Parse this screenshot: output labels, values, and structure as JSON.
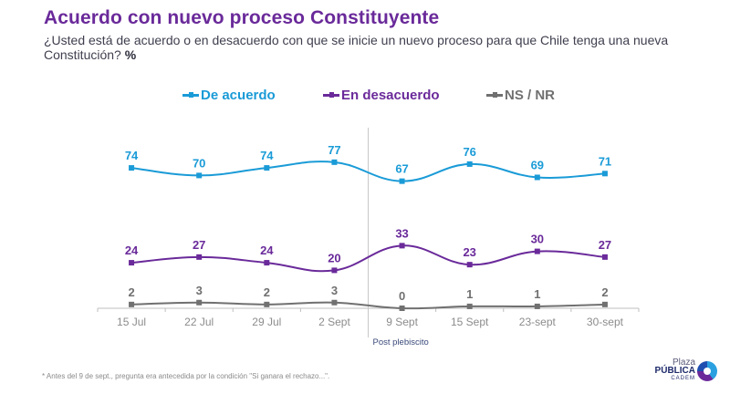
{
  "header": {
    "title": "Acuerdo con nuevo proceso Constituyente",
    "subtitle": "¿Usted está de acuerdo o en desacuerdo con que se inicie un nuevo proceso para que Chile tenga una nueva Constitución?",
    "subtitle_unit": "%"
  },
  "colors": {
    "acuerdo": "#1a9bd7",
    "desacuerdo": "#6a2a9a",
    "nsnr": "#707070",
    "axis": "#bfbfbf",
    "title": "#6a2a9a"
  },
  "chart_data": {
    "type": "line",
    "title": "Acuerdo con nuevo proceso Constituyente",
    "xlabel": "",
    "ylabel": "%",
    "categories": [
      "15 Jul",
      "22 Jul",
      "29 Jul",
      "2 Sept",
      "9 Sept",
      "15 Sept",
      "23-sept",
      "30-sept"
    ],
    "series": [
      {
        "name": "De acuerdo",
        "color": "#1a9bd7",
        "values": [
          74,
          70,
          74,
          77,
          67,
          76,
          69,
          71
        ]
      },
      {
        "name": "En desacuerdo",
        "color": "#6a2a9a",
        "values": [
          24,
          27,
          24,
          20,
          33,
          23,
          30,
          27
        ]
      },
      {
        "name": "NS / NR",
        "color": "#707070",
        "values": [
          2,
          3,
          2,
          3,
          0,
          1,
          1,
          2
        ]
      }
    ],
    "ylim": [
      0,
      80
    ],
    "grid": false,
    "legend_position": "top",
    "annotations": [
      {
        "text": "Post plebiscito",
        "between": [
          "2 Sept",
          "9 Sept"
        ]
      }
    ]
  },
  "footnote": "Antes del 9 de sept., pregunta era antecedida por la condición \"Si ganara el rechazo...\".",
  "footnote_marker": "*",
  "logo": {
    "line1": "Plaza",
    "line2": "PÚBLICA",
    "line3": "CADEM"
  }
}
